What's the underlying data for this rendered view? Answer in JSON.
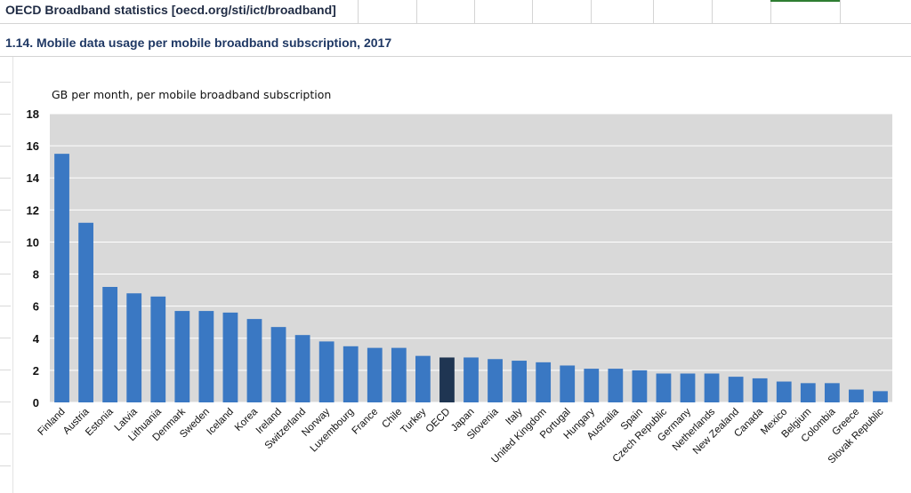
{
  "sheet": {
    "title": "OECD Broadband statistics [oecd.org/sti/ict/broadband]",
    "subtitle": "1.14. Mobile data usage per mobile broadband subscription, 2017"
  },
  "colors": {
    "bar": "#3a78c3",
    "highlight_bar": "#1f3552",
    "plot_background": "#d9d9d9",
    "gridline": "#ffffff"
  },
  "chart_data": {
    "type": "bar",
    "title": "",
    "ylabel": "GB per month, per mobile broadband subscription",
    "xlabel": "",
    "ylim": [
      0,
      18
    ],
    "yticks": [
      0,
      2,
      4,
      6,
      8,
      10,
      12,
      14,
      16,
      18
    ],
    "grid": true,
    "highlight": "OECD",
    "categories": [
      "Finland",
      "Austria",
      "Estonia",
      "Latvia",
      "Lithuania",
      "Denmark",
      "Sweden",
      "Iceland",
      "Korea",
      "Ireland",
      "Switzerland",
      "Norway",
      "Luxembourg",
      "France",
      "Chile",
      "Turkey",
      "OECD",
      "Japan",
      "Slovenia",
      "Italy",
      "United Kingdom",
      "Portugal",
      "Hungary",
      "Australia",
      "Spain",
      "Czech Republic",
      "Germany",
      "Netherlands",
      "New Zealand",
      "Canada",
      "Mexico",
      "Belgium",
      "Colombia",
      "Greece",
      "Slovak Republic"
    ],
    "values": [
      15.5,
      11.2,
      7.2,
      6.8,
      6.6,
      5.7,
      5.7,
      5.6,
      5.2,
      4.7,
      4.2,
      3.8,
      3.5,
      3.4,
      3.4,
      2.9,
      2.8,
      2.8,
      2.7,
      2.6,
      2.5,
      2.3,
      2.1,
      2.1,
      2.0,
      1.8,
      1.8,
      1.8,
      1.6,
      1.5,
      1.3,
      1.2,
      1.2,
      0.8,
      0.7
    ]
  }
}
